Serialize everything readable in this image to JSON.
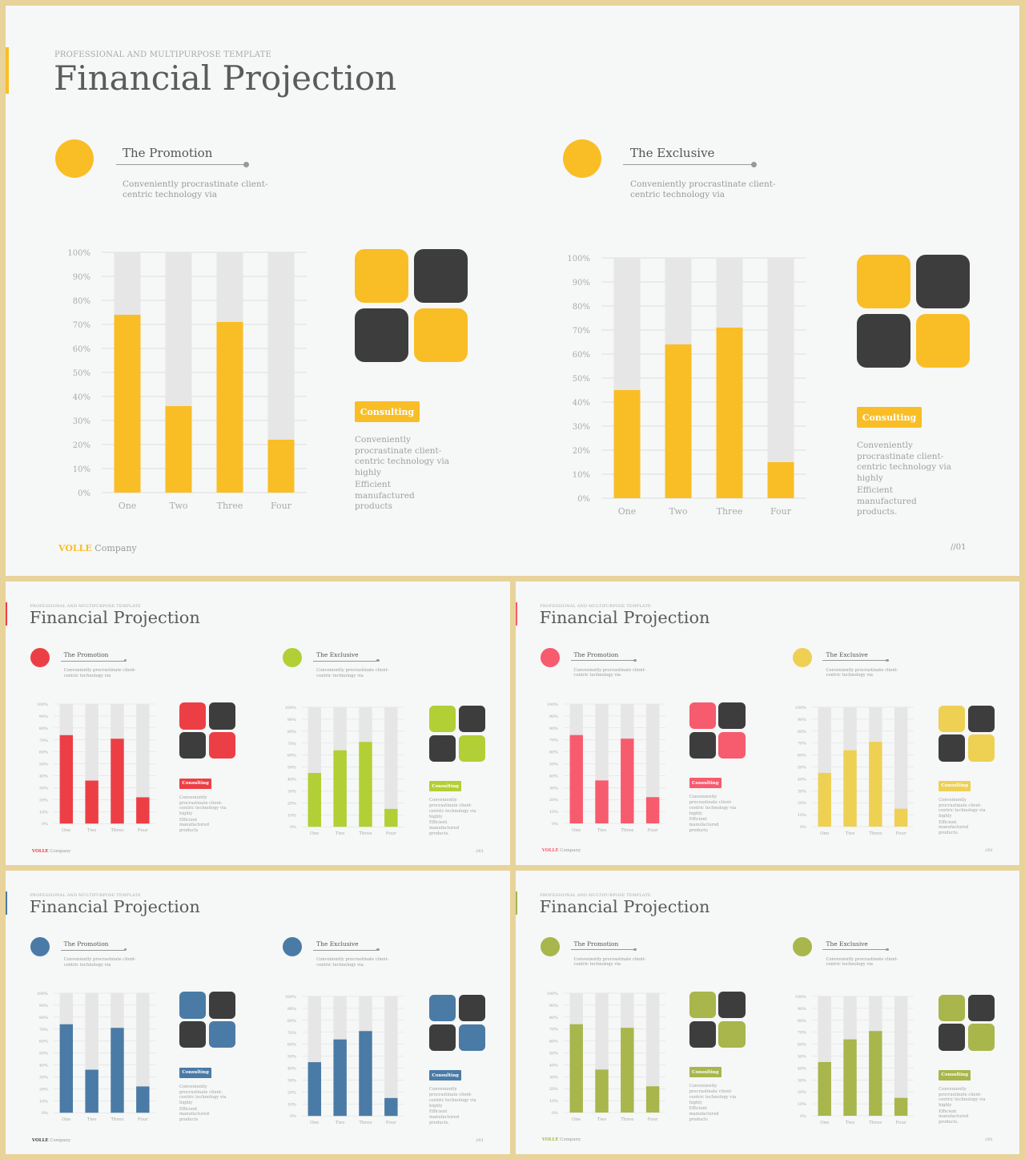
{
  "slide": {
    "subtitle": "PROFESSIONAL AND MULTIPURPOSE  TEMPLATE",
    "title": "Financial Projection",
    "brand": "VOLLE",
    "company": "Company",
    "page_number": "//01"
  },
  "sections": [
    {
      "heading": "The Promotion",
      "description": "Conveniently procrastinate client-centric technology via",
      "badge_label": "Consulting",
      "panel_text_1": "Conveniently procrastinate client-centric technology via highly",
      "panel_text_2": "Efficient manufactured products",
      "chart_data": {
        "type": "bar",
        "categories": [
          "One",
          "Two",
          "Three",
          "Four"
        ],
        "values": [
          74,
          36,
          71,
          22
        ],
        "y_ticks": [
          "0%",
          "10%",
          "20%",
          "30%",
          "40%",
          "50%",
          "60%",
          "70%",
          "80%",
          "90%",
          "100%"
        ],
        "ylim": [
          0,
          100
        ]
      }
    },
    {
      "heading": "The Exclusive",
      "description": "Conveniently procrastinate client-centric technology via",
      "badge_label": "Consulting",
      "panel_text_1": "Conveniently procrastinate client-centric technology via highly",
      "panel_text_2": "Efficient manufactured products.",
      "chart_data": {
        "type": "bar",
        "categories": [
          "One",
          "Two",
          "Three",
          "Four"
        ],
        "values": [
          45,
          64,
          71,
          15
        ],
        "y_ticks": [
          "0%",
          "10%",
          "20%",
          "30%",
          "40%",
          "50%",
          "60%",
          "70%",
          "80%",
          "90%",
          "100%"
        ],
        "ylim": [
          0,
          100
        ]
      }
    }
  ],
  "variants": [
    {
      "accent_left": "#f9be26",
      "accent_right": "#f9be26",
      "dark": "#3d3d3d"
    },
    {
      "accent_left": "#ec3f45",
      "accent_right": "#b2cf35",
      "dark": "#3d3d3d"
    },
    {
      "accent_left": "#f75b6e",
      "accent_right": "#eed053",
      "dark": "#3d3d3d"
    },
    {
      "accent_left": "#4a7ba6",
      "accent_right": "#4a7ba6",
      "dark": "#3d3d3d"
    },
    {
      "accent_left": "#a8b64c",
      "accent_right": "#a8b64c",
      "dark": "#3d3d3d"
    }
  ]
}
